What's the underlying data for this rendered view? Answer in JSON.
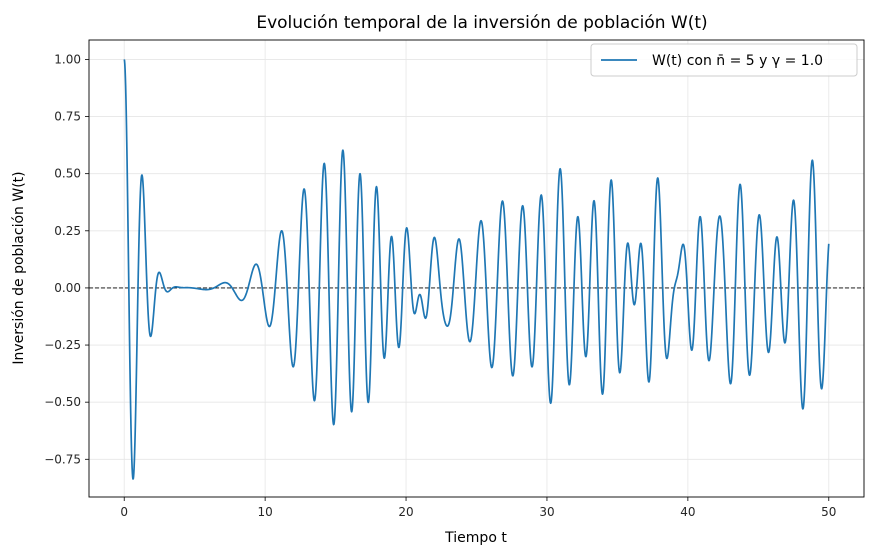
{
  "chart_data": {
    "type": "line",
    "title": "Evolución temporal de la inversión de población W(t)",
    "xlabel": "Tiempo t",
    "ylabel": "Inversión de población W(t)",
    "xlim": [
      -2.5,
      52.5
    ],
    "ylim": [
      -0.915,
      1.085
    ],
    "x_ticks": [
      0,
      10,
      20,
      30,
      40,
      50
    ],
    "y_ticks": [
      -0.75,
      -0.5,
      -0.25,
      0.0,
      0.25,
      0.5,
      0.75,
      1.0
    ],
    "x_tick_labels": [
      "0",
      "10",
      "20",
      "30",
      "40",
      "50"
    ],
    "y_tick_labels": [
      "−0.75",
      "−0.50",
      "−0.25",
      "0.00",
      "0.25",
      "0.50",
      "0.75",
      "1.00"
    ],
    "grid": true,
    "legend_position": "top-right",
    "reference_line": {
      "y": 0.0,
      "style": "dashed",
      "color": "#000000"
    },
    "colors": {
      "series": "#1f77b4"
    },
    "model": {
      "nbar": 5,
      "gamma": 1.0,
      "t_start": 0,
      "t_end": 50
    },
    "series": [
      {
        "name": "W(t) con n̄ = 5 y γ = 1.0"
      }
    ]
  }
}
